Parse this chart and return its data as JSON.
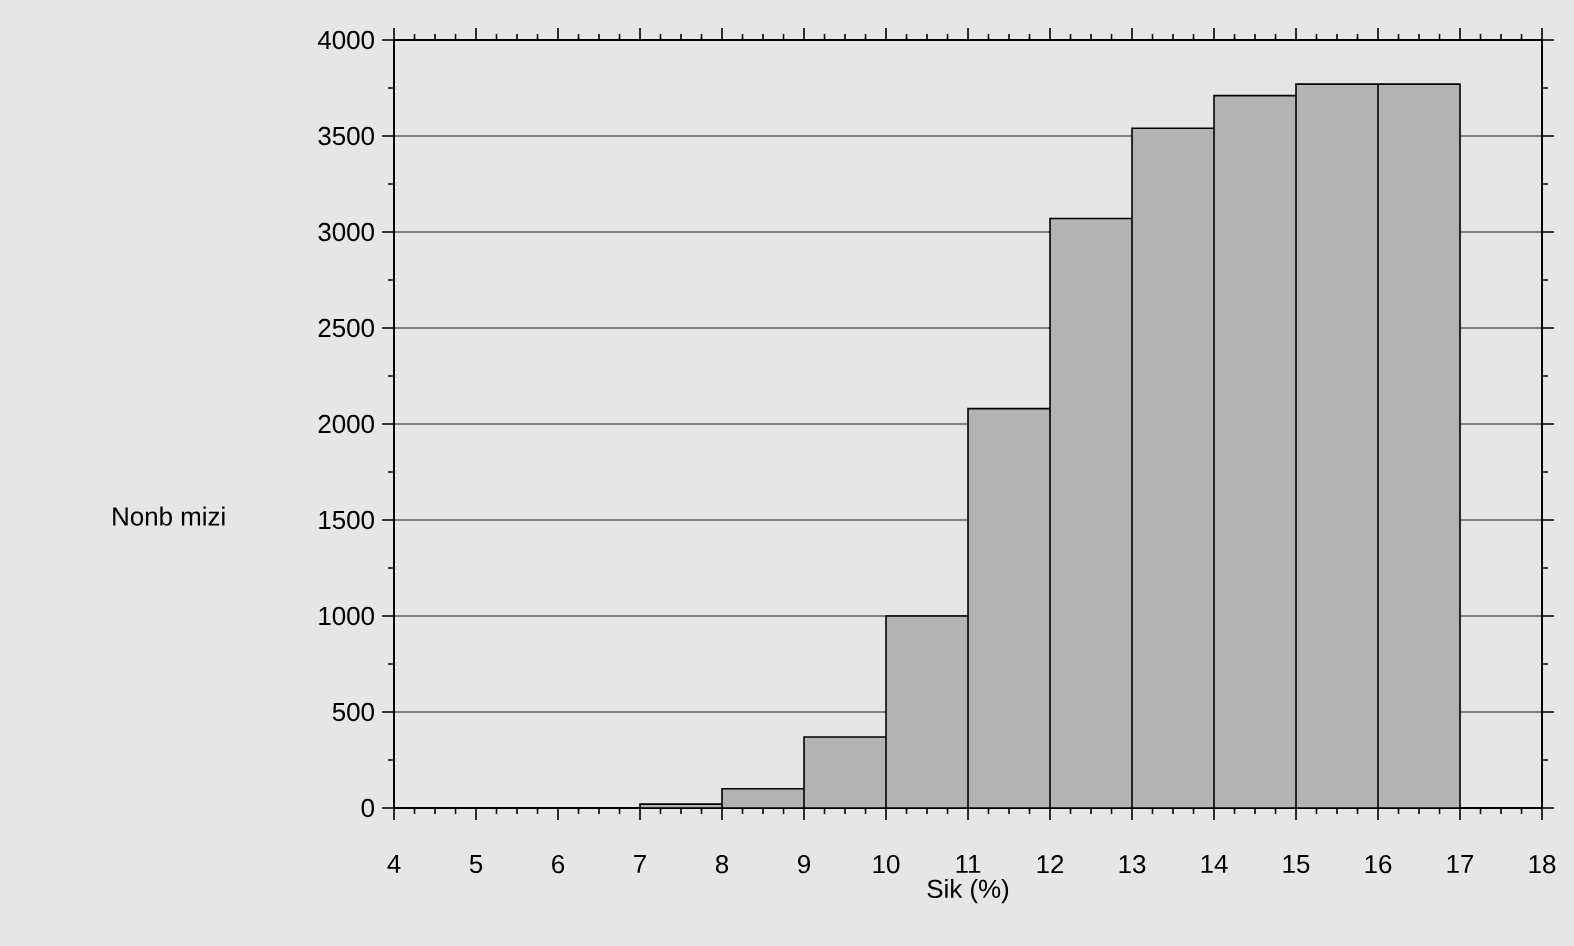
{
  "chart_data": {
    "type": "histogram",
    "xlabel": "Sik (%)",
    "ylabel": "Nonb mizi",
    "bins": [
      7,
      8,
      9,
      10,
      11,
      12,
      13,
      14,
      15,
      16,
      17
    ],
    "values": [
      20,
      100,
      370,
      1000,
      2080,
      3070,
      3540,
      3710,
      3770,
      3770
    ],
    "color": "#b3b3b3",
    "xlim": [
      4,
      18
    ],
    "xticks": [
      4,
      5,
      6,
      7,
      8,
      9,
      10,
      11,
      12,
      13,
      14,
      15,
      16,
      17,
      18
    ],
    "ylim": [
      0,
      4000
    ],
    "yticks": [
      0,
      500,
      1000,
      1500,
      2000,
      2500,
      3000,
      3500,
      4000
    ],
    "grid": "y"
  }
}
